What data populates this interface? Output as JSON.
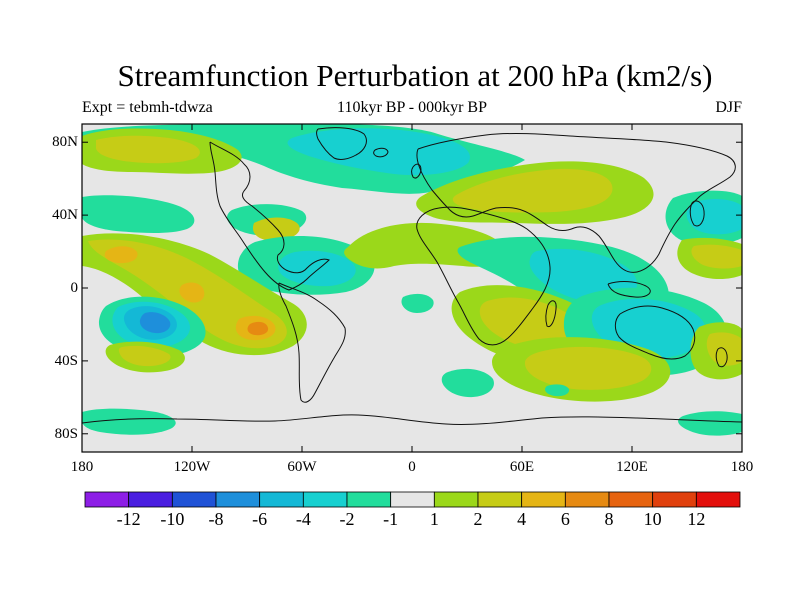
{
  "title": "Streamfunction Perturbation at 200 hPa (km2/s)",
  "subtitle": {
    "left": "Expt = tebmh-tdwza",
    "center": "110kyr BP - 000kyr BP",
    "right": "DJF"
  },
  "map": {
    "projection": "cylindrical equidistant",
    "lon_range": [
      -180,
      180
    ],
    "lat_range": [
      -90,
      90
    ],
    "lat_ticks": [
      {
        "value": 80,
        "label": "80N"
      },
      {
        "value": 40,
        "label": "40N"
      },
      {
        "value": 0,
        "label": "0"
      },
      {
        "value": -40,
        "label": "40S"
      },
      {
        "value": -80,
        "label": "80S"
      }
    ],
    "lon_ticks": [
      {
        "value": -180,
        "label": "180"
      },
      {
        "value": -120,
        "label": "120W"
      },
      {
        "value": -60,
        "label": "60W"
      },
      {
        "value": 0,
        "label": "0"
      },
      {
        "value": 60,
        "label": "60E"
      },
      {
        "value": 120,
        "label": "120E"
      },
      {
        "value": 180,
        "label": "180"
      }
    ]
  },
  "legend": {
    "colors": [
      "#8d1ee6",
      "#4a1ee0",
      "#1f52d6",
      "#1e8fdb",
      "#14b8d6",
      "#17d0d0",
      "#22dd9c",
      "#e6e6e6",
      "#9bd81a",
      "#c6cc16",
      "#e5b515",
      "#e68a12",
      "#e6630f",
      "#e0400d",
      "#e30f0c"
    ],
    "labels": [
      "-12",
      "-10",
      "-8",
      "-6",
      "-4",
      "-2",
      "-1",
      "1",
      "2",
      "4",
      "6",
      "8",
      "10",
      "12"
    ]
  },
  "fill_colors": {
    "background": "#e6e6e6",
    "neg1": "#22dd9c",
    "neg2": "#17d0d0",
    "neg4": "#14b8d6",
    "neg6": "#1e8fdb",
    "pos1": "#9bd81a",
    "pos2": "#c6cc16",
    "pos4": "#e5b515",
    "pos6": "#e68a12"
  }
}
